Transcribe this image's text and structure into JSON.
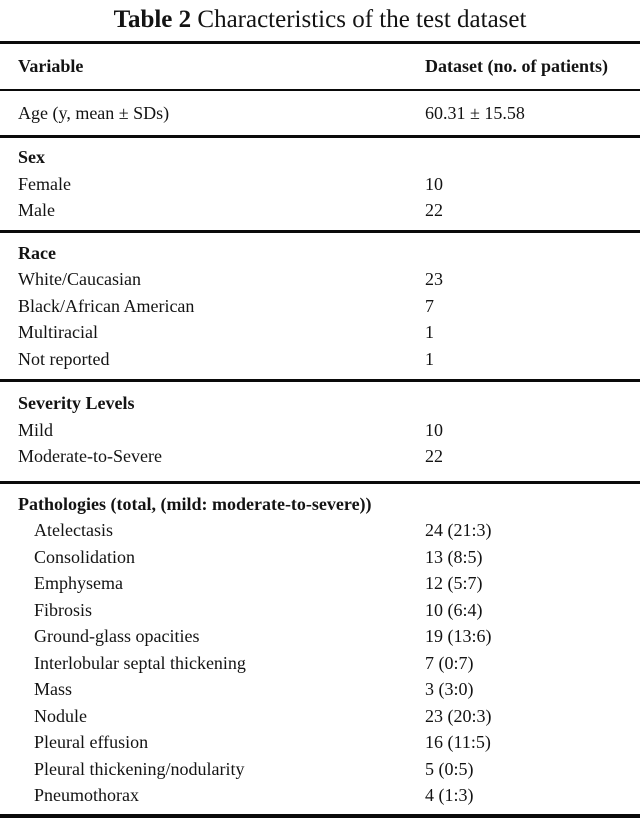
{
  "caption": {
    "label": "Table 2",
    "text": "Characteristics of the test dataset"
  },
  "table": {
    "columns": [
      "Variable",
      "Dataset (no. of patients)"
    ],
    "sections": [
      {
        "heading": "",
        "rows": [
          {
            "label": "Age (y, mean ± SDs)",
            "value": "60.31 ± 15.58"
          }
        ]
      },
      {
        "heading": "Sex",
        "rows": [
          {
            "label": "Female",
            "value": "10"
          },
          {
            "label": "Male",
            "value": "22"
          }
        ]
      },
      {
        "heading": "Race",
        "rows": [
          {
            "label": "White/Caucasian",
            "value": "23"
          },
          {
            "label": "Black/African American",
            "value": "7"
          },
          {
            "label": "Multiracial",
            "value": "1"
          },
          {
            "label": "Not reported",
            "value": "1"
          }
        ]
      },
      {
        "heading": "Severity Levels",
        "rows": [
          {
            "label": "Mild",
            "value": "10"
          },
          {
            "label": "Moderate-to-Severe",
            "value": "22"
          }
        ]
      },
      {
        "heading": "Pathologies (total, (mild: moderate-to-severe))",
        "indent": true,
        "rows": [
          {
            "label": "Atelectasis",
            "value": "24 (21:3)"
          },
          {
            "label": "Consolidation",
            "value": "13 (8:5)"
          },
          {
            "label": "Emphysema",
            "value": "12 (5:7)"
          },
          {
            "label": "Fibrosis",
            "value": "10 (6:4)"
          },
          {
            "label": "Ground-glass opacities",
            "value": "19 (13:6)"
          },
          {
            "label": "Interlobular septal thickening",
            "value": "7 (0:7)"
          },
          {
            "label": "Mass",
            "value": "3 (3:0)"
          },
          {
            "label": "Nodule",
            "value": "23 (20:3)"
          },
          {
            "label": "Pleural effusion",
            "value": "16 (11:5)"
          },
          {
            "label": "Pleural thickening/nodularity",
            "value": "5 (0:5)"
          },
          {
            "label": "Pneumothorax",
            "value": "4 (1:3)"
          }
        ]
      }
    ]
  }
}
